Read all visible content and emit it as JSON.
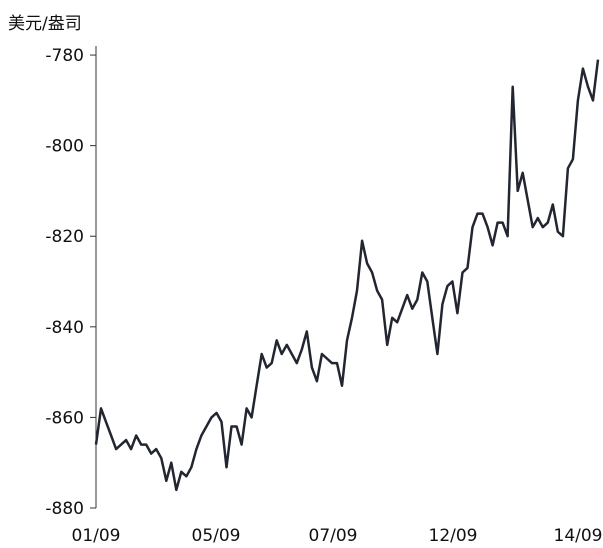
{
  "chart_data": {
    "type": "line",
    "unit_label": "美元/盎司",
    "yticks": [
      "-780",
      "-800",
      "-820",
      "-840",
      "-860",
      "-880"
    ],
    "xticks": [
      "01/09",
      "05/09",
      "07/09",
      "12/09",
      "14/09"
    ],
    "ylim": [
      -880,
      -778
    ],
    "grid": false,
    "line_color": "#222631",
    "series": [
      {
        "x": [
          0,
          1,
          2,
          3,
          4,
          5,
          6,
          7,
          8,
          9,
          10,
          11,
          12,
          13,
          14,
          15,
          16,
          17,
          18,
          19,
          20,
          21,
          22,
          23,
          24,
          25,
          26,
          27,
          28,
          29,
          30,
          31,
          32,
          33,
          34,
          35,
          36,
          37,
          38,
          39,
          40,
          41,
          42,
          43,
          44,
          45,
          46,
          47,
          48,
          49,
          50,
          51,
          52,
          53,
          54,
          55,
          56,
          57,
          58,
          59,
          60,
          61,
          62,
          63,
          64,
          65,
          66,
          67,
          68,
          69,
          70,
          71,
          72,
          73,
          74,
          75,
          76,
          77,
          78,
          79,
          80,
          81,
          82,
          83,
          84,
          85,
          86,
          87,
          88,
          89,
          90,
          91,
          92,
          93,
          94,
          95,
          96,
          97,
          98,
          99,
          100
        ],
        "values": [
          -866,
          -858,
          -861,
          -864,
          -867,
          -866,
          -865,
          -867,
          -864,
          -866,
          -866,
          -868,
          -867,
          -869,
          -874,
          -870,
          -876,
          -872,
          -873,
          -871,
          -867,
          -864,
          -862,
          -860,
          -859,
          -861,
          -871,
          -862,
          -862,
          -866,
          -858,
          -860,
          -853,
          -846,
          -849,
          -848,
          -843,
          -846,
          -844,
          -846,
          -848,
          -845,
          -841,
          -849,
          -852,
          -846,
          -847,
          -848,
          -848,
          -853,
          -843,
          -838,
          -832,
          -821,
          -826,
          -828,
          -832,
          -834,
          -844,
          -838,
          -839,
          -836,
          -833,
          -836,
          -834,
          -828,
          -830,
          -838,
          -846,
          -835,
          -831,
          -830,
          -837,
          -828,
          -827,
          -818,
          -815,
          -815,
          -818,
          -822,
          -817,
          -817,
          -820,
          -787,
          -810,
          -806,
          -812,
          -818,
          -816,
          -818,
          -817,
          -813,
          -819,
          -820,
          -805,
          -803,
          -790,
          -783,
          -787,
          -790,
          -781
        ]
      }
    ]
  }
}
